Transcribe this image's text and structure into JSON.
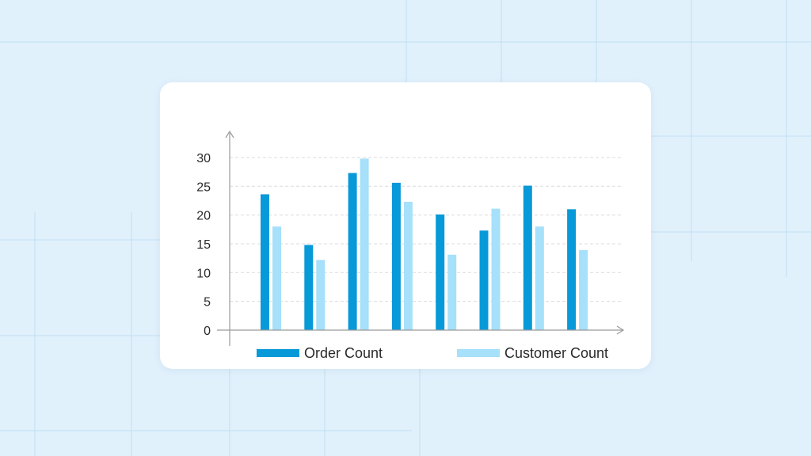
{
  "chart_data": {
    "type": "bar",
    "title": "",
    "xlabel": "",
    "ylabel": "",
    "categories": [
      "",
      "",
      "",
      "",
      "",
      "",
      "",
      ""
    ],
    "series": [
      {
        "name": "Order Count",
        "color": "#0899d8",
        "values": [
          23.6,
          14.8,
          27.3,
          25.6,
          20.1,
          17.3,
          25.1,
          21.0
        ]
      },
      {
        "name": "Customer Count",
        "color": "#a6e0fa",
        "values": [
          18.0,
          12.2,
          29.8,
          22.3,
          13.1,
          21.1,
          18.0,
          13.9
        ]
      }
    ],
    "yticks": [
      "0",
      "5",
      "10",
      "15",
      "20",
      "25",
      "30"
    ],
    "ylim": [
      0,
      33
    ],
    "grid": true,
    "legend_position": "bottom"
  },
  "colors": {
    "background": "#e1f1fc",
    "card": "#ffffff",
    "axis": "#9a9a9a",
    "gridline": "#dcdcdc"
  }
}
